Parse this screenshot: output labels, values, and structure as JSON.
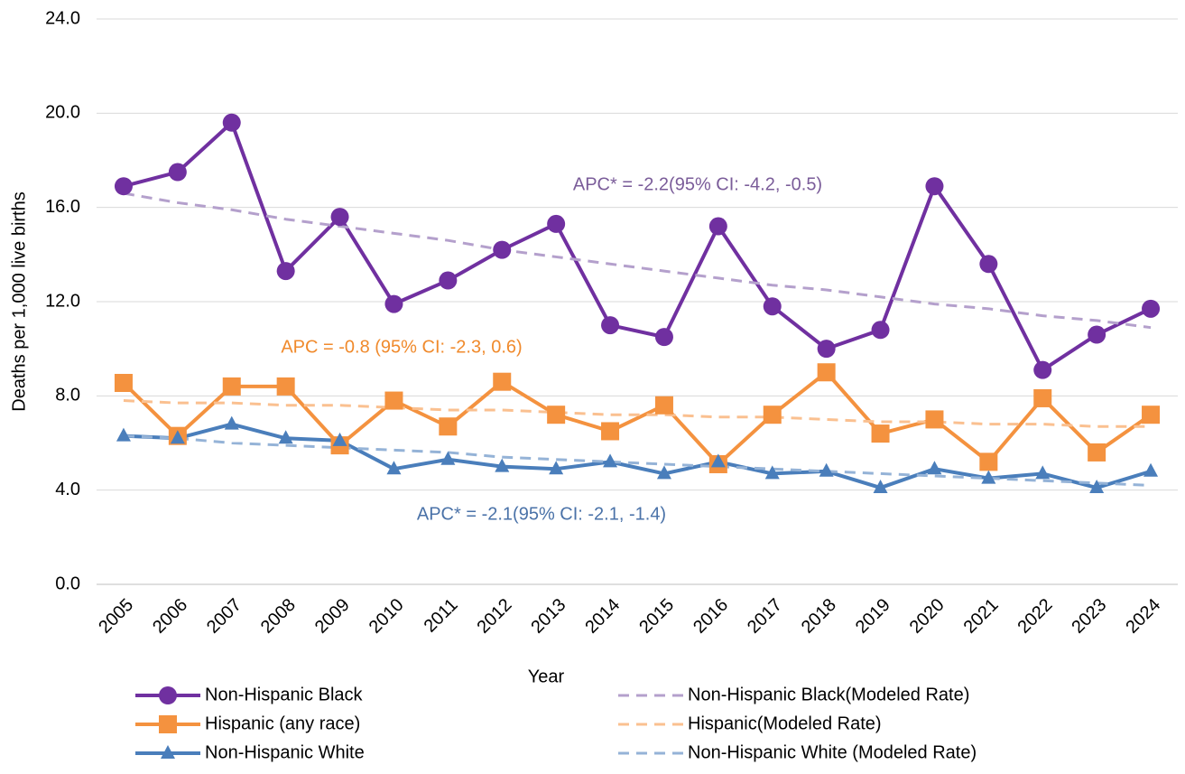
{
  "chart_data": {
    "type": "line",
    "x_label": "Year",
    "y_label": "Deaths per 1,000 live births",
    "categories": [
      "2005",
      "2006",
      "2007",
      "2008",
      "2009",
      "2010",
      "2011",
      "2012",
      "2013",
      "2014",
      "2015",
      "2016",
      "2017",
      "2018",
      "2019",
      "2020",
      "2021",
      "2022",
      "2023",
      "2024"
    ],
    "ylim": [
      0,
      24
    ],
    "yticks": [
      {
        "value": 0,
        "label": "0.0"
      },
      {
        "value": 4,
        "label": "4.0"
      },
      {
        "value": 8,
        "label": "8.0"
      },
      {
        "value": 12,
        "label": "12.0"
      },
      {
        "value": 16,
        "label": "16.0"
      },
      {
        "value": 20,
        "label": "20.0"
      },
      {
        "value": 24,
        "label": "24.0"
      }
    ],
    "grid": true,
    "series": [
      {
        "name": "Non-Hispanic Black",
        "color": "#7030a0",
        "marker": "circle",
        "dashed": false,
        "values": [
          16.9,
          17.5,
          19.6,
          13.3,
          15.6,
          11.9,
          12.9,
          14.2,
          15.3,
          11.0,
          10.5,
          15.2,
          11.8,
          10.0,
          10.8,
          16.9,
          13.6,
          9.1,
          10.6,
          11.7
        ]
      },
      {
        "name": "Non-Hispanic Black(Modeled Rate)",
        "color": "#b4a0cc",
        "dashed": true,
        "values": [
          16.6,
          16.2,
          15.9,
          15.5,
          15.2,
          14.9,
          14.6,
          14.2,
          13.9,
          13.6,
          13.3,
          13.0,
          12.7,
          12.5,
          12.2,
          11.9,
          11.7,
          11.4,
          11.2,
          10.9
        ]
      },
      {
        "name": "Hispanic (any race)",
        "color": "#f4923f",
        "marker": "square",
        "dashed": false,
        "values": [
          8.55,
          6.3,
          8.4,
          8.4,
          5.9,
          7.8,
          6.7,
          8.6,
          7.2,
          6.5,
          7.6,
          5.1,
          7.2,
          9.0,
          6.4,
          7.0,
          5.2,
          7.9,
          5.6,
          7.2
        ]
      },
      {
        "name": "Hispanic(Modeled Rate)",
        "color": "#fac090",
        "dashed": true,
        "values": [
          7.8,
          7.7,
          7.7,
          7.6,
          7.6,
          7.5,
          7.4,
          7.4,
          7.3,
          7.2,
          7.2,
          7.1,
          7.1,
          7.0,
          6.9,
          6.9,
          6.8,
          6.8,
          6.7,
          6.7
        ]
      },
      {
        "name": "Non-Hispanic White",
        "color": "#4a7ebb",
        "marker": "triangle",
        "dashed": false,
        "values": [
          6.3,
          6.2,
          6.8,
          6.2,
          6.1,
          4.9,
          5.3,
          5.0,
          4.9,
          5.2,
          4.7,
          5.2,
          4.7,
          4.8,
          4.1,
          4.9,
          4.5,
          4.7,
          4.1,
          4.8
        ]
      },
      {
        "name": "Non-Hispanic White (Modeled Rate)",
        "color": "#95b3d7",
        "dashed": true,
        "values": [
          6.3,
          6.2,
          6.0,
          5.9,
          5.8,
          5.7,
          5.6,
          5.4,
          5.3,
          5.2,
          5.1,
          5.0,
          4.9,
          4.8,
          4.7,
          4.6,
          4.5,
          4.4,
          4.3,
          4.2
        ]
      }
    ],
    "annotations": [
      {
        "text": "APC* = -2.2(95% CI: -4.2, -0.5)",
        "color": "#7a5c99"
      },
      {
        "text": "APC = -0.8 (95% CI: -2.3, 0.6)",
        "color": "#f08a2c"
      },
      {
        "text": "APC* = -2.1(95% CI: -2.1, -1.4)",
        "color": "#4a72a8"
      }
    ]
  }
}
